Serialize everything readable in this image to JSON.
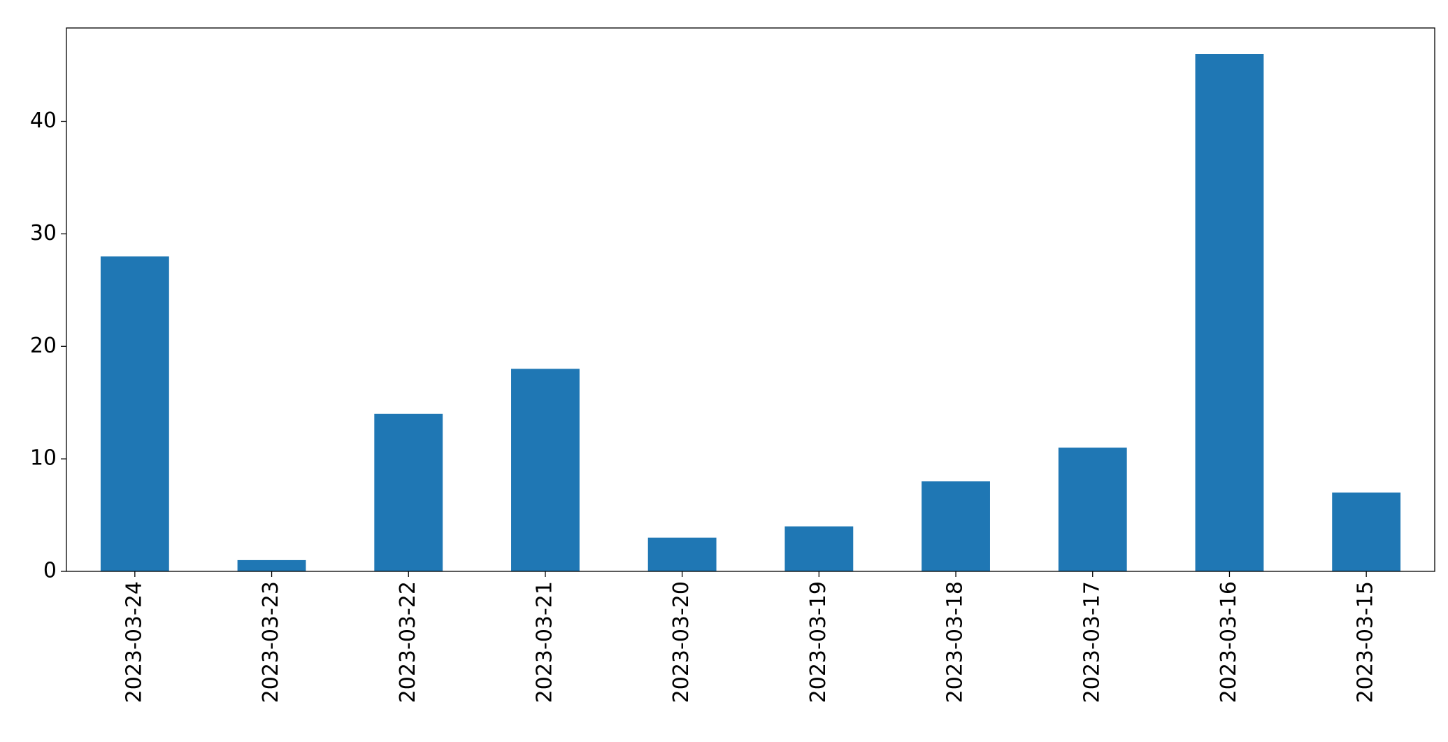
{
  "chart_data": {
    "type": "bar",
    "categories": [
      "2023-03-24",
      "2023-03-23",
      "2023-03-22",
      "2023-03-21",
      "2023-03-20",
      "2023-03-19",
      "2023-03-18",
      "2023-03-17",
      "2023-03-16",
      "2023-03-15"
    ],
    "values": [
      28,
      1,
      14,
      18,
      3,
      4,
      8,
      11,
      46,
      7
    ],
    "color": "#1f77b4",
    "ylim": [
      0,
      48.3
    ],
    "yticks": [
      0,
      10,
      20,
      30,
      40
    ],
    "grid": false
  }
}
